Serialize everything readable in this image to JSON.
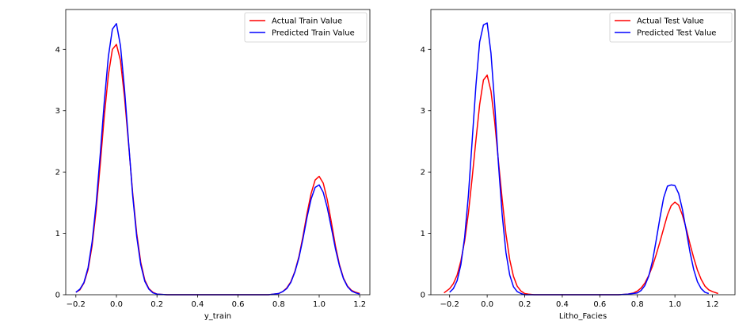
{
  "chart_data": [
    {
      "type": "line",
      "xlabel": "y_train",
      "ylabel": "",
      "xlim": [
        -0.25,
        1.25
      ],
      "ylim": [
        0,
        4.65
      ],
      "xticks": [
        "−0.2",
        "0.0",
        "0.2",
        "0.4",
        "0.6",
        "0.8",
        "1.0",
        "1.2"
      ],
      "xtick_values": [
        -0.2,
        0.0,
        0.2,
        0.4,
        0.6,
        0.8,
        1.0,
        1.2
      ],
      "yticks": [
        "0",
        "1",
        "2",
        "3",
        "4"
      ],
      "ytick_values": [
        0,
        1,
        2,
        3,
        4
      ],
      "grid": false,
      "legend_position": "top-right",
      "series": [
        {
          "name": "Actual Train Value",
          "color": "#ff0000",
          "x": [
            -0.2,
            -0.18,
            -0.16,
            -0.14,
            -0.12,
            -0.1,
            -0.08,
            -0.06,
            -0.04,
            -0.02,
            0.0,
            0.02,
            0.04,
            0.06,
            0.08,
            0.1,
            0.12,
            0.14,
            0.16,
            0.18,
            0.2,
            0.25,
            0.3,
            0.4,
            0.5,
            0.6,
            0.7,
            0.75,
            0.8,
            0.82,
            0.84,
            0.86,
            0.88,
            0.9,
            0.92,
            0.94,
            0.96,
            0.98,
            1.0,
            1.02,
            1.04,
            1.06,
            1.08,
            1.1,
            1.12,
            1.14,
            1.16,
            1.18,
            1.2
          ],
          "y": [
            0.04,
            0.08,
            0.19,
            0.41,
            0.8,
            1.38,
            2.11,
            2.9,
            3.58,
            4.0,
            4.08,
            3.82,
            3.22,
            2.45,
            1.66,
            1.0,
            0.53,
            0.24,
            0.1,
            0.04,
            0.01,
            0.0,
            0.0,
            0.0,
            0.0,
            0.0,
            0.0,
            0.0,
            0.02,
            0.05,
            0.11,
            0.21,
            0.38,
            0.62,
            0.95,
            1.32,
            1.65,
            1.87,
            1.93,
            1.82,
            1.55,
            1.18,
            0.8,
            0.49,
            0.27,
            0.14,
            0.07,
            0.04,
            0.02
          ]
        },
        {
          "name": "Predicted Train Value",
          "color": "#0000ff",
          "x": [
            -0.2,
            -0.18,
            -0.16,
            -0.14,
            -0.12,
            -0.1,
            -0.08,
            -0.06,
            -0.04,
            -0.02,
            0.0,
            0.02,
            0.04,
            0.06,
            0.08,
            0.1,
            0.12,
            0.14,
            0.16,
            0.18,
            0.2,
            0.25,
            0.3,
            0.4,
            0.5,
            0.6,
            0.7,
            0.75,
            0.8,
            0.82,
            0.84,
            0.86,
            0.88,
            0.9,
            0.92,
            0.94,
            0.96,
            0.98,
            1.0,
            1.02,
            1.04,
            1.06,
            1.08,
            1.1,
            1.12,
            1.14,
            1.16,
            1.18,
            1.2
          ],
          "y": [
            0.04,
            0.09,
            0.2,
            0.44,
            0.86,
            1.48,
            2.28,
            3.13,
            3.88,
            4.33,
            4.42,
            4.06,
            3.35,
            2.48,
            1.62,
            0.95,
            0.49,
            0.22,
            0.09,
            0.03,
            0.01,
            0.0,
            0.0,
            0.0,
            0.0,
            0.0,
            0.0,
            0.0,
            0.02,
            0.05,
            0.1,
            0.2,
            0.37,
            0.6,
            0.91,
            1.26,
            1.56,
            1.75,
            1.79,
            1.67,
            1.42,
            1.09,
            0.75,
            0.47,
            0.26,
            0.13,
            0.06,
            0.03,
            0.01
          ]
        }
      ]
    },
    {
      "type": "line",
      "xlabel": "Litho_Facies",
      "ylabel": "",
      "xlim": [
        -0.3,
        1.32
      ],
      "ylim": [
        0,
        4.65
      ],
      "xticks": [
        "−0.2",
        "0.0",
        "0.2",
        "0.4",
        "0.6",
        "0.8",
        "1.0",
        "1.2"
      ],
      "xtick_values": [
        -0.2,
        0.0,
        0.2,
        0.4,
        0.6,
        0.8,
        1.0,
        1.2
      ],
      "yticks": [
        "0",
        "1",
        "2",
        "3",
        "4"
      ],
      "ytick_values": [
        0,
        1,
        2,
        3,
        4
      ],
      "grid": false,
      "legend_position": "top-right",
      "series": [
        {
          "name": "Actual Test Value",
          "color": "#ff0000",
          "x": [
            -0.23,
            -0.2,
            -0.18,
            -0.16,
            -0.14,
            -0.12,
            -0.1,
            -0.08,
            -0.06,
            -0.04,
            -0.02,
            0.0,
            0.02,
            0.04,
            0.06,
            0.08,
            0.1,
            0.12,
            0.14,
            0.16,
            0.18,
            0.2,
            0.22,
            0.25,
            0.3,
            0.4,
            0.5,
            0.6,
            0.7,
            0.75,
            0.78,
            0.8,
            0.82,
            0.84,
            0.86,
            0.88,
            0.9,
            0.92,
            0.94,
            0.96,
            0.98,
            1.0,
            1.02,
            1.04,
            1.06,
            1.08,
            1.1,
            1.12,
            1.14,
            1.16,
            1.18,
            1.2,
            1.23
          ],
          "y": [
            0.03,
            0.1,
            0.18,
            0.32,
            0.55,
            0.88,
            1.33,
            1.9,
            2.52,
            3.1,
            3.5,
            3.58,
            3.32,
            2.82,
            2.18,
            1.55,
            0.99,
            0.57,
            0.3,
            0.14,
            0.06,
            0.02,
            0.01,
            0.0,
            0.0,
            0.0,
            0.0,
            0.0,
            0.0,
            0.01,
            0.03,
            0.06,
            0.11,
            0.19,
            0.31,
            0.46,
            0.65,
            0.86,
            1.08,
            1.3,
            1.45,
            1.51,
            1.46,
            1.3,
            1.08,
            0.83,
            0.6,
            0.4,
            0.25,
            0.14,
            0.08,
            0.05,
            0.02
          ]
        },
        {
          "name": "Predicted Test Value",
          "color": "#0000ff",
          "x": [
            -0.2,
            -0.18,
            -0.16,
            -0.14,
            -0.12,
            -0.1,
            -0.08,
            -0.06,
            -0.04,
            -0.02,
            0.0,
            0.02,
            0.04,
            0.06,
            0.08,
            0.1,
            0.12,
            0.14,
            0.16,
            0.18,
            0.2,
            0.25,
            0.3,
            0.4,
            0.5,
            0.6,
            0.7,
            0.75,
            0.8,
            0.82,
            0.84,
            0.86,
            0.88,
            0.9,
            0.92,
            0.94,
            0.96,
            0.98,
            1.0,
            1.02,
            1.04,
            1.06,
            1.08,
            1.1,
            1.12,
            1.14,
            1.16,
            1.18
          ],
          "y": [
            0.04,
            0.1,
            0.23,
            0.49,
            0.94,
            1.62,
            2.5,
            3.41,
            4.12,
            4.4,
            4.43,
            3.94,
            3.1,
            2.14,
            1.3,
            0.69,
            0.32,
            0.13,
            0.05,
            0.02,
            0.0,
            0.0,
            0.0,
            0.0,
            0.0,
            0.0,
            0.0,
            0.01,
            0.03,
            0.07,
            0.15,
            0.3,
            0.54,
            0.88,
            1.25,
            1.58,
            1.77,
            1.79,
            1.78,
            1.65,
            1.39,
            1.05,
            0.7,
            0.41,
            0.21,
            0.1,
            0.04,
            0.02
          ]
        }
      ]
    }
  ]
}
